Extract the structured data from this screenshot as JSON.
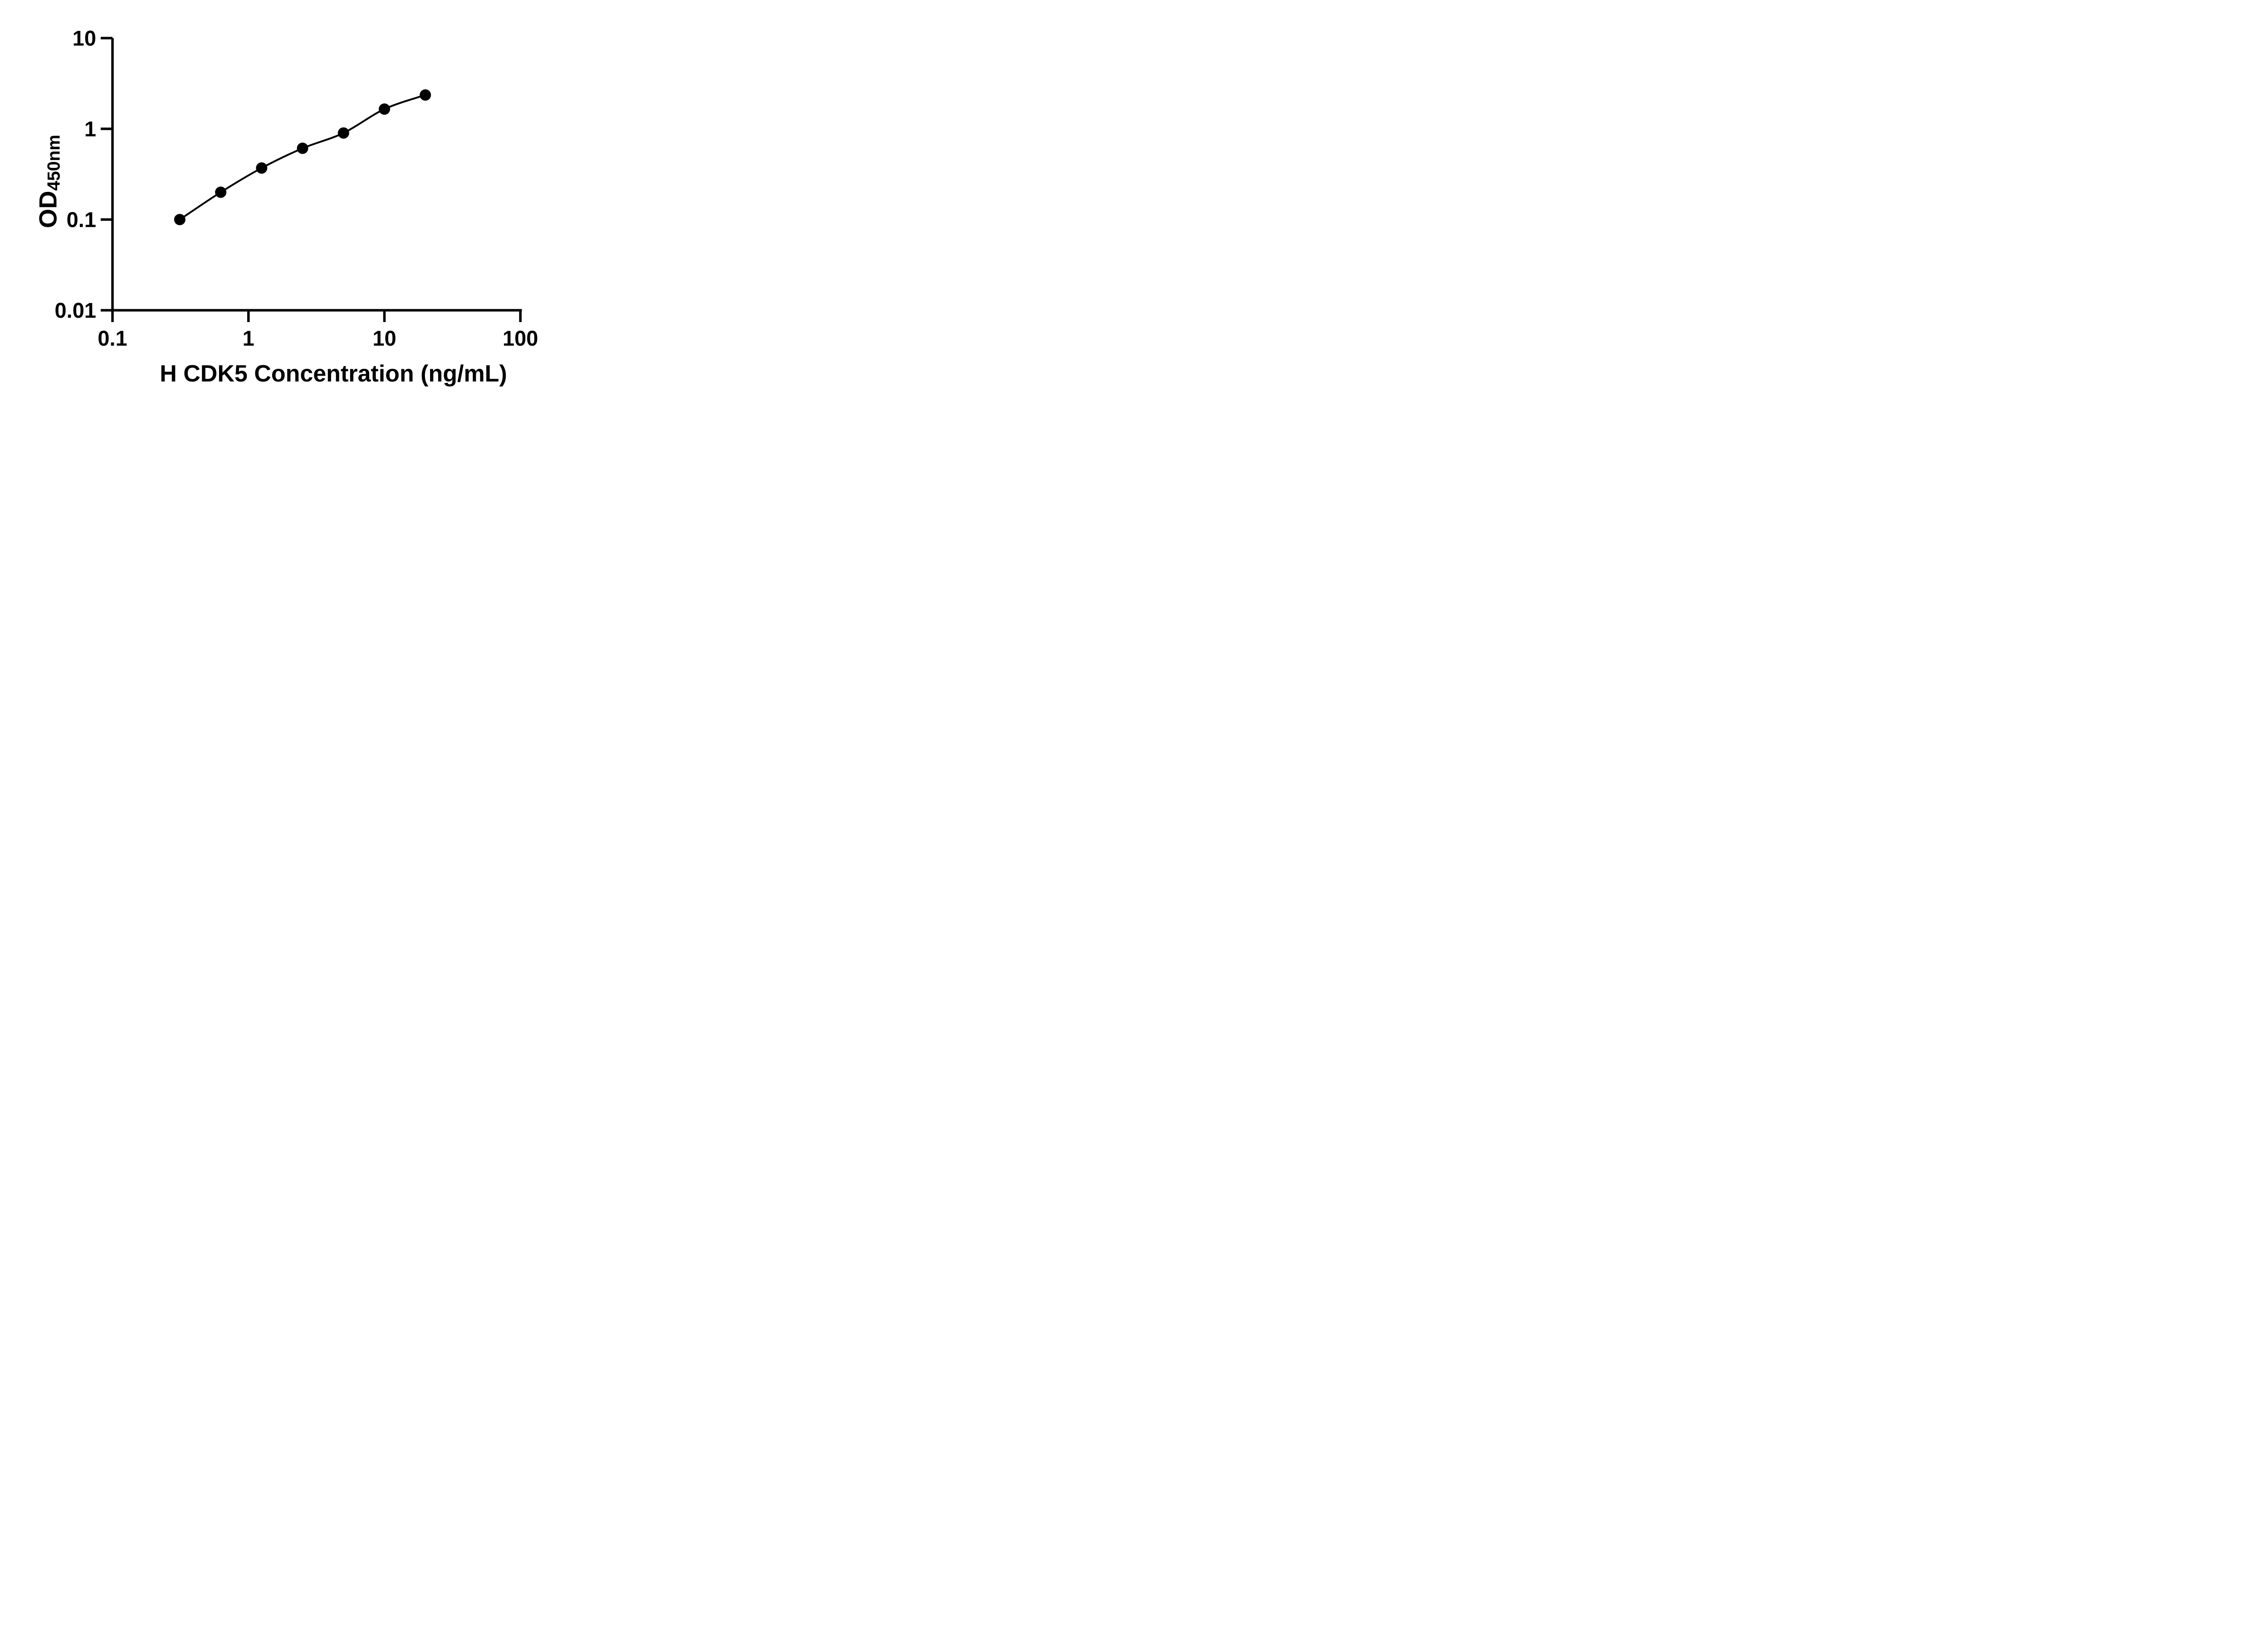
{
  "page": {
    "background_color": "#ffffff",
    "ink_color": "#000000"
  },
  "chart_data": {
    "type": "scatter",
    "subtype": "log-log standard curve with fitted line",
    "title": "",
    "xlabel": "H CDK5 Concentration (ng/mL)",
    "ylabel_main": "OD",
    "ylabel_sub": "450nm",
    "x": [
      0.3125,
      0.625,
      1.25,
      2.5,
      5,
      10,
      20
    ],
    "y": [
      0.1,
      0.2,
      0.37,
      0.61,
      0.9,
      1.65,
      2.36
    ],
    "xscale": "log",
    "yscale": "log",
    "xlim": [
      0.1,
      100
    ],
    "ylim": [
      0.01,
      10
    ],
    "x_tick_labels": [
      "0.1",
      "1",
      "10",
      "100"
    ],
    "x_tick_values": [
      0.1,
      1,
      10,
      100
    ],
    "y_tick_labels": [
      "10",
      "1",
      "0.1",
      "0.01"
    ],
    "y_tick_values": [
      10,
      1,
      0.1,
      0.01
    ],
    "grid": false,
    "legend": false,
    "marker_color": "#000000",
    "line_color": "#000000",
    "axis_color": "#000000"
  }
}
